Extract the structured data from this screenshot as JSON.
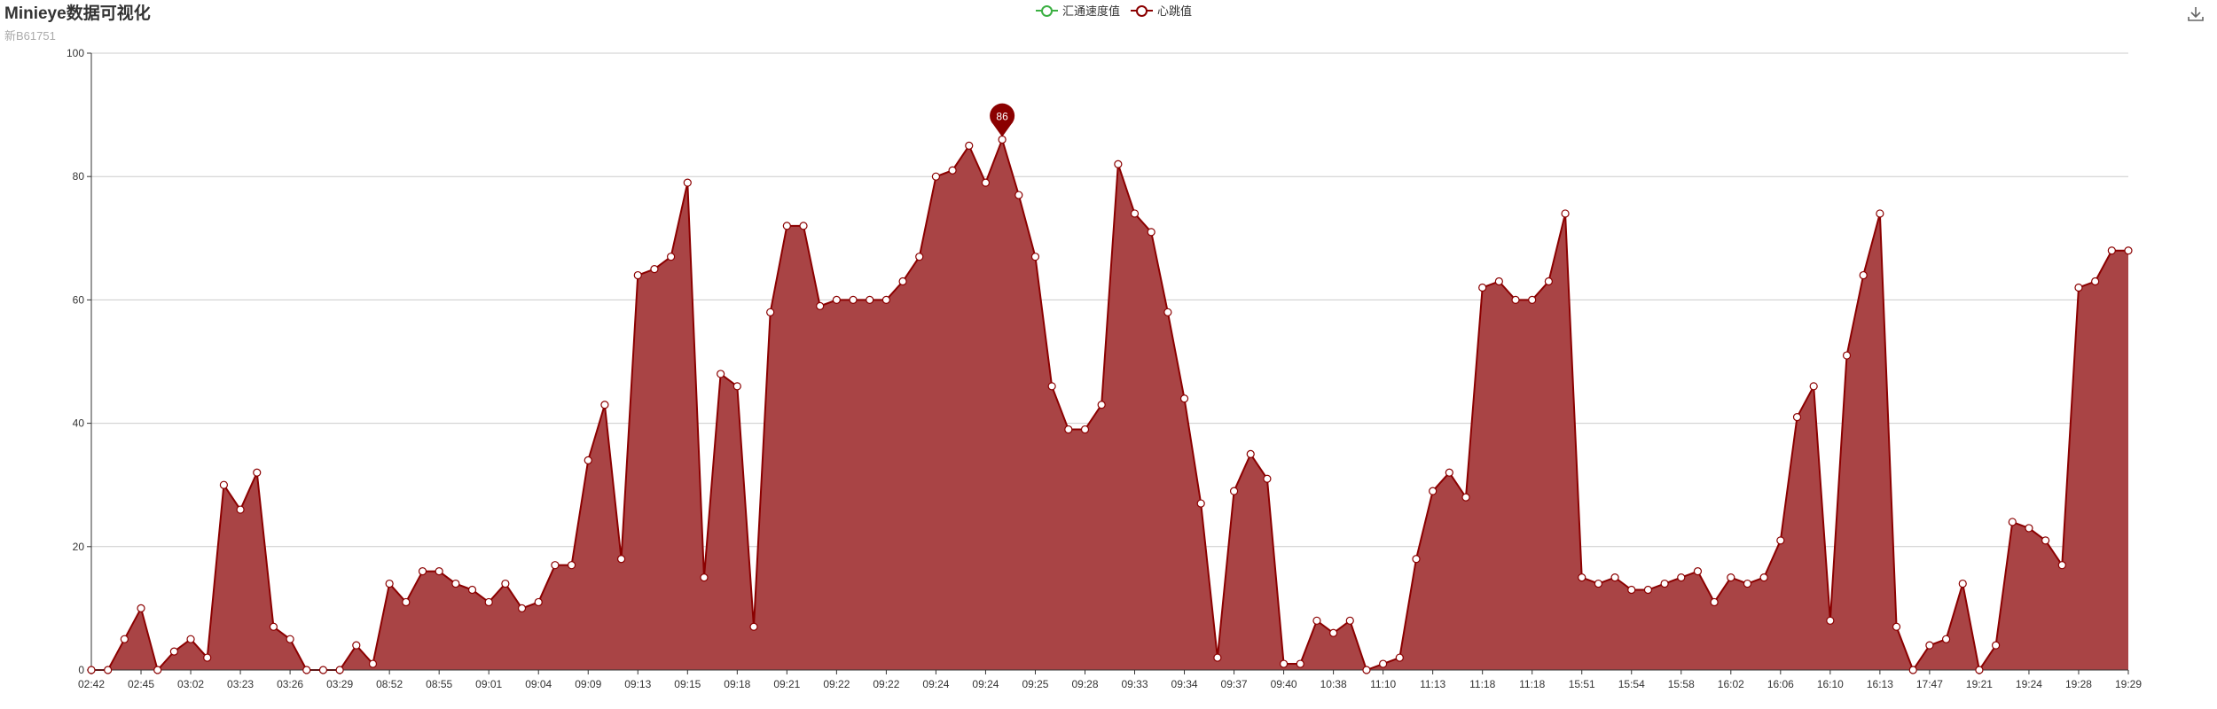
{
  "header": {
    "title": "Minieye数据可视化",
    "subtitle": "新B61751"
  },
  "toolbar": {
    "download_icon": "download-icon"
  },
  "colors": {
    "series1": "#3cb043",
    "series2": "#8b0000",
    "area": "#a94445",
    "axis": "#333333",
    "grid": "#cccccc"
  },
  "chart_data": {
    "type": "area",
    "title": "Minieye数据可视化",
    "subtitle": "新B61751",
    "legend": [
      "汇通速度值",
      "心跳值"
    ],
    "legend_position": "top-center",
    "grid": true,
    "ylim": [
      0,
      100
    ],
    "yticks": [
      0,
      20,
      40,
      60,
      80,
      100
    ],
    "x_tick_labels": [
      "02:42",
      "02:45",
      "03:02",
      "03:23",
      "03:26",
      "03:29",
      "08:52",
      "08:55",
      "09:01",
      "09:04",
      "09:09",
      "09:13",
      "09:15",
      "09:18",
      "09:21",
      "09:22",
      "09:22",
      "09:24",
      "09:24",
      "09:25",
      "09:28",
      "09:33",
      "09:34",
      "09:37",
      "09:40",
      "10:38",
      "11:10",
      "11:13",
      "11:18",
      "11:18",
      "15:51",
      "15:54",
      "15:58",
      "16:02",
      "16:06",
      "16:10",
      "16:13",
      "17:47",
      "19:21",
      "19:24",
      "19:28",
      "19:29"
    ],
    "series": [
      {
        "name": "汇通速度值",
        "values": []
      },
      {
        "name": "心跳值",
        "values": [
          0,
          0,
          5,
          10,
          0,
          3,
          5,
          2,
          30,
          26,
          32,
          7,
          5,
          0,
          0,
          0,
          4,
          1,
          14,
          11,
          16,
          16,
          14,
          13,
          11,
          14,
          10,
          11,
          17,
          17,
          34,
          43,
          18,
          64,
          65,
          67,
          79,
          15,
          48,
          46,
          7,
          58,
          72,
          72,
          59,
          60,
          60,
          60,
          60,
          63,
          67,
          80,
          81,
          85,
          79,
          86,
          77,
          67,
          46,
          39,
          39,
          43,
          82,
          74,
          71,
          58,
          44,
          27,
          2,
          29,
          35,
          31,
          1,
          1,
          8,
          6,
          8,
          0,
          1,
          2,
          18,
          29,
          32,
          28,
          62,
          63,
          60,
          60,
          63,
          74,
          15,
          14,
          15,
          13,
          13,
          14,
          15,
          16,
          11,
          15,
          14,
          15,
          21,
          41,
          46,
          8,
          51,
          64,
          74,
          7,
          0,
          4,
          5,
          14,
          0,
          4,
          24,
          23,
          21,
          17,
          62,
          63,
          68,
          68
        ]
      }
    ],
    "mark_point": {
      "label": "86",
      "value": 86
    }
  }
}
